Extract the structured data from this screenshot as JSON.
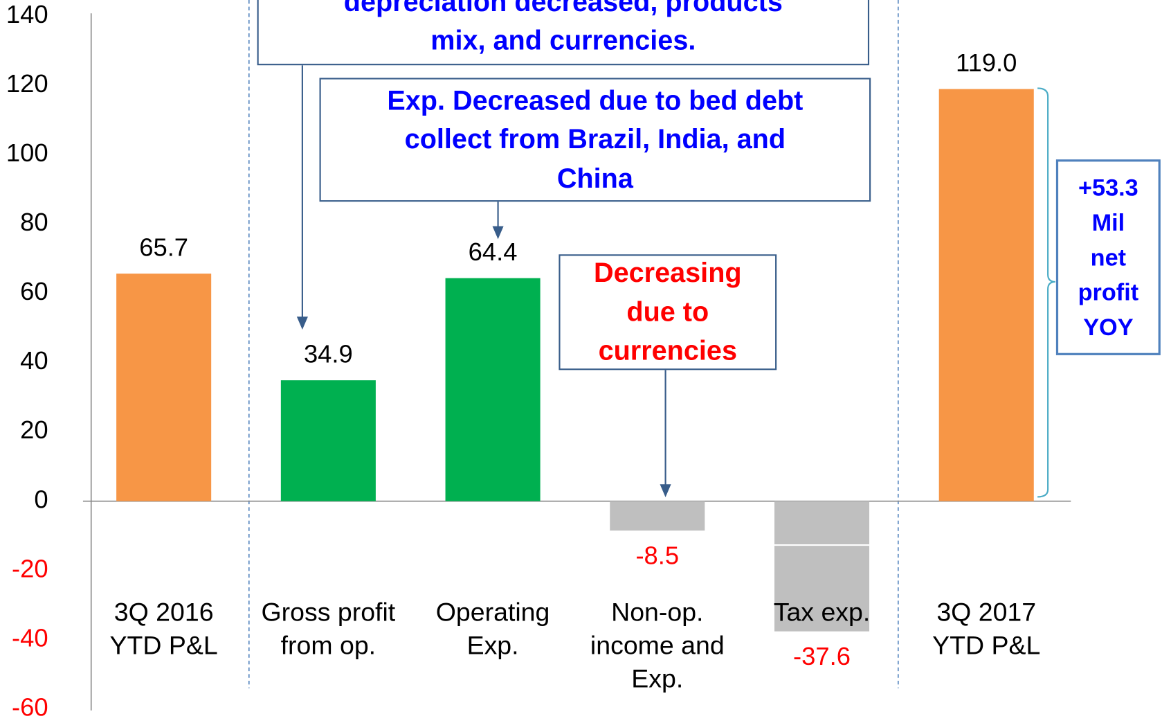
{
  "chart_data": {
    "type": "bar",
    "categories": [
      "3Q 2016\nYTD P&L",
      "Gross profit\nfrom op.",
      "Operating\nExp.",
      "Non-op.\nincome and\nExp.",
      "Tax exp.",
      "3Q 2017\nYTD P&L"
    ],
    "values": [
      65.7,
      34.9,
      64.4,
      -8.5,
      -37.6,
      119.0
    ],
    "value_labels": [
      "65.7",
      "34.9",
      "64.4",
      "-8.5",
      "-37.6",
      "119.0"
    ],
    "colors": [
      "#F79646",
      "#00B050",
      "#00B050",
      "#BFBFBF",
      "#BFBFBF",
      "#F79646"
    ],
    "negative_color": "#FF0000",
    "ylim": [
      -60,
      140
    ],
    "yticks": [
      -60,
      -40,
      -20,
      0,
      20,
      40,
      60,
      80,
      100,
      120,
      140
    ],
    "annotations": [
      {
        "text": "depreciation decreased, products\nmix, and currencies.",
        "color": "#0000FF"
      },
      {
        "text": "Exp. Decreased due to bed debt\ncollect from Brazil, India, and\nChina",
        "color": "#0000FF"
      },
      {
        "text": "Decreasing\ndue to\ncurrencies",
        "color": "#FF0000"
      },
      {
        "text": "+53.3\nMil\nnet\nprofit\nYOY",
        "color": "#0000FF"
      }
    ]
  }
}
